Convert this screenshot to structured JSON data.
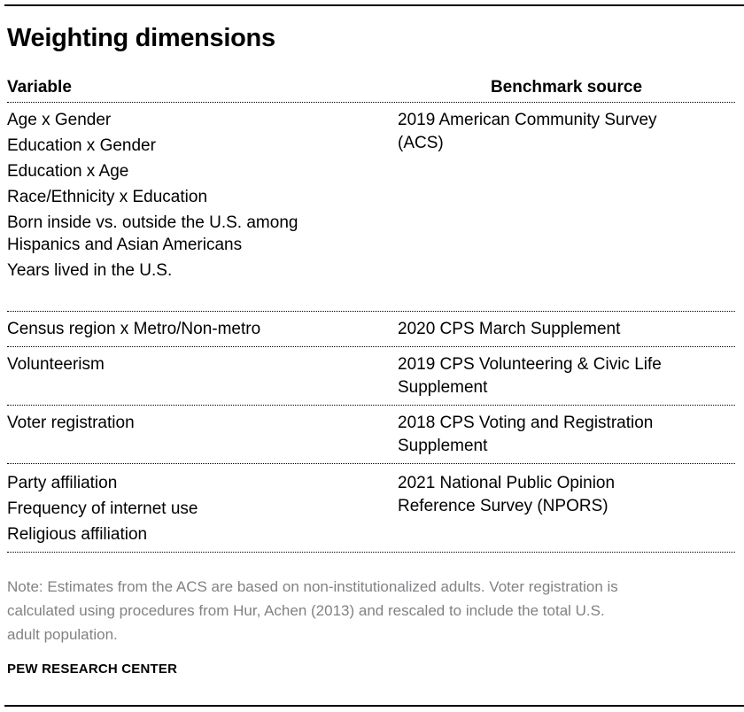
{
  "title": "Weighting dimensions",
  "table": {
    "columns": [
      "Variable",
      "Benchmark source"
    ],
    "rows": [
      {
        "variables": [
          [
            "Age x Gender"
          ],
          [
            "Education x Gender"
          ],
          [
            "Education x Age"
          ],
          [
            "Race/Ethnicity x Education"
          ],
          [
            "Born inside vs. outside the U.S. among",
            "Hispanics and Asian Americans"
          ],
          [
            "Years lived in the U.S."
          ]
        ],
        "benchmark": [
          "2019 American Community Survey",
          "(ACS)"
        ]
      },
      {
        "variables": [
          [
            "Census region x Metro/Non-metro"
          ]
        ],
        "benchmark": [
          "2020 CPS March Supplement"
        ]
      },
      {
        "variables": [
          [
            "Volunteerism"
          ]
        ],
        "benchmark": [
          "2019 CPS Volunteering & Civic Life",
          "Supplement"
        ]
      },
      {
        "variables": [
          [
            "Voter registration"
          ]
        ],
        "benchmark": [
          "2018 CPS Voting and Registration",
          "Supplement"
        ]
      },
      {
        "variables": [
          [
            "Party affiliation"
          ],
          [
            "Frequency of internet use"
          ],
          [
            "Religious affiliation"
          ]
        ],
        "benchmark": [
          "2021 National Public Opinion",
          "Reference Survey (NPORS)"
        ]
      }
    ]
  },
  "note": {
    "lines": [
      "Note: Estimates from the ACS are based on non-institutionalized adults. Voter registration is",
      "calculated using procedures from Hur, Achen (2013) and rescaled to include the total U.S.",
      "adult population."
    ]
  },
  "source": "PEW RESEARCH CENTER",
  "colors": {
    "text": "#000000",
    "note_text": "#808285",
    "rule": "#000000"
  }
}
